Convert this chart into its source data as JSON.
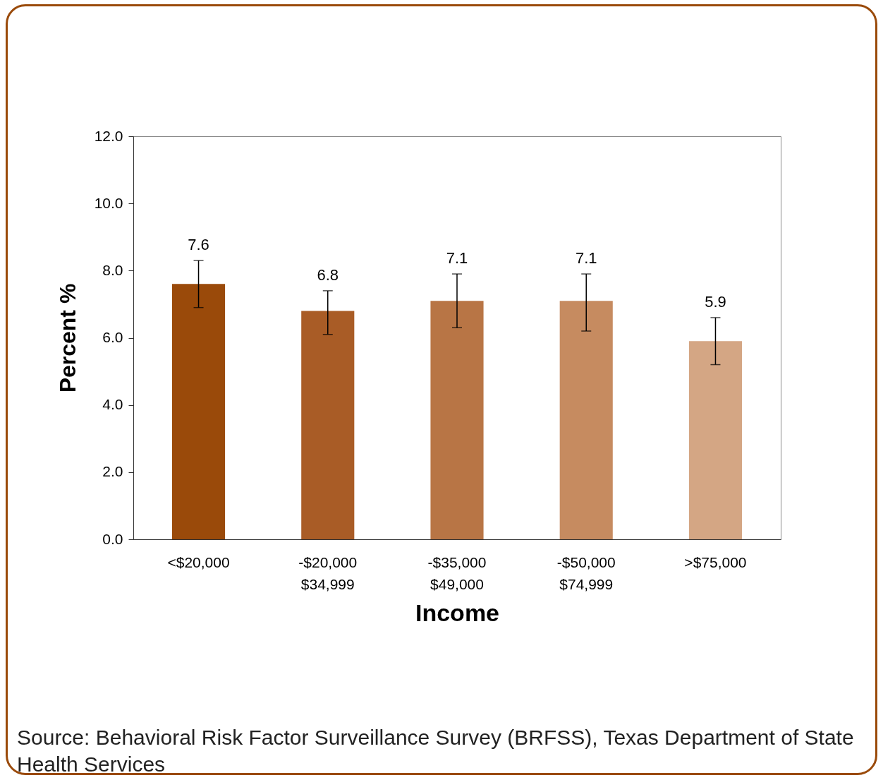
{
  "chart_data": {
    "type": "bar",
    "xlabel": "Income",
    "ylabel": "Percent  %",
    "categories": [
      "<$20,000",
      "-$20,000 $34,999",
      "-$35,000 $49,000",
      "-$50,000 $74,999",
      ">$75,000"
    ],
    "values": [
      7.6,
      6.8,
      7.1,
      7.1,
      5.9
    ],
    "colors": [
      "#9a4a0a",
      "#a95c26",
      "#b87545",
      "#c68b60",
      "#d4a684"
    ],
    "errors": [
      [
        6.9,
        8.3
      ],
      [
        6.1,
        7.4
      ],
      [
        6.3,
        7.9
      ],
      [
        6.2,
        7.9
      ],
      [
        5.2,
        6.6
      ]
    ],
    "data_labels": true,
    "ylim": [
      0,
      12
    ],
    "yticks": [
      {
        "value": 0,
        "label": "0.0"
      },
      {
        "value": 2,
        "label": "2.0"
      },
      {
        "value": 4,
        "label": "4.0"
      },
      {
        "value": 6,
        "label": "6.0"
      },
      {
        "value": 8,
        "label": "8.0"
      },
      {
        "value": 10,
        "label": "10.0"
      },
      {
        "value": 12,
        "label": "12.0"
      }
    ],
    "grid": false,
    "annotations": [
      "Source: Behavioral Risk Factor Surveillance Survey (BRFSS), Texas Department of State Health Services"
    ]
  }
}
